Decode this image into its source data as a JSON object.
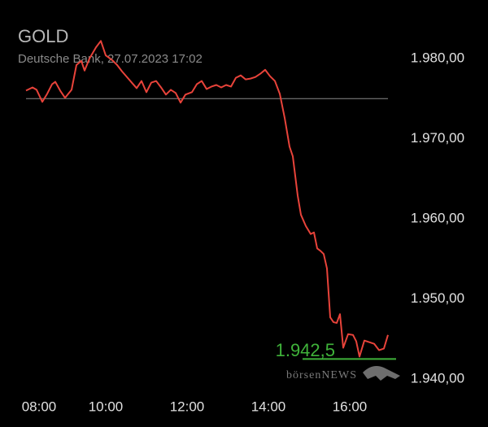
{
  "chart_data": {
    "type": "line",
    "title": "GOLD",
    "subtitle": "Deutsche Bank, 27.07.2023 17:02",
    "watermark": "börsenNEWS",
    "x": [
      8.04,
      8.2,
      8.3,
      8.44,
      8.56,
      8.68,
      8.76,
      8.88,
      9.0,
      9.16,
      9.28,
      9.4,
      9.48,
      9.6,
      9.76,
      9.88,
      10.0,
      10.16,
      10.28,
      10.4,
      10.52,
      10.64,
      10.76,
      10.88,
      11.0,
      11.12,
      11.24,
      11.36,
      11.48,
      11.6,
      11.72,
      11.84,
      11.96,
      12.12,
      12.24,
      12.36,
      12.48,
      12.6,
      12.72,
      12.84,
      12.96,
      13.08,
      13.2,
      13.32,
      13.44,
      13.56,
      13.68,
      13.8,
      13.92,
      14.04,
      14.16,
      14.28,
      14.4,
      14.52,
      14.6,
      14.72,
      14.8,
      14.92,
      15.04,
      15.12,
      15.2,
      15.28,
      15.36,
      15.44,
      15.52,
      15.6,
      15.68,
      15.76,
      15.84,
      15.96,
      16.08,
      16.16,
      16.24,
      16.36,
      16.48,
      16.6,
      16.72,
      16.84,
      16.94
    ],
    "series": [
      {
        "color": "#e8433a",
        "values": [
          1976.0,
          1976.4,
          1976.1,
          1974.6,
          1975.6,
          1976.8,
          1977.1,
          1976.0,
          1975.1,
          1976.1,
          1979.2,
          1979.7,
          1978.5,
          1980.0,
          1981.4,
          1982.2,
          1980.4,
          1979.8,
          1979.2,
          1978.4,
          1977.7,
          1977.0,
          1976.3,
          1977.2,
          1975.8,
          1977.0,
          1977.2,
          1976.4,
          1975.5,
          1976.1,
          1975.7,
          1974.5,
          1975.5,
          1975.8,
          1976.8,
          1977.2,
          1976.2,
          1976.5,
          1976.7,
          1976.4,
          1976.7,
          1976.5,
          1977.6,
          1977.9,
          1977.4,
          1977.5,
          1977.7,
          1978.1,
          1978.6,
          1977.8,
          1977.2,
          1975.6,
          1972.6,
          1969.0,
          1967.8,
          1962.9,
          1960.5,
          1959.1,
          1958.1,
          1958.3,
          1956.3,
          1956.0,
          1955.6,
          1953.8,
          1947.7,
          1947.1,
          1947.0,
          1948.1,
          1943.9,
          1945.6,
          1945.5,
          1944.7,
          1942.8,
          1944.8,
          1944.6,
          1944.4,
          1943.6,
          1943.8,
          1945.5
        ]
      }
    ],
    "reference_line": {
      "value": 1975,
      "color": "#8a8a8a"
    },
    "annotation": {
      "value": 1942.5,
      "label": "1.942,5",
      "color": "#3fb33a"
    },
    "xlim": [
      8,
      18
    ],
    "ylim": [
      1938,
      1986
    ],
    "xticks": [
      {
        "value": 8,
        "label": "08:00"
      },
      {
        "value": 10,
        "label": "10:00"
      },
      {
        "value": 12,
        "label": "12:00"
      },
      {
        "value": 14,
        "label": "14:00"
      },
      {
        "value": 16,
        "label": "16:00"
      }
    ],
    "yticks": [
      {
        "value": 1940,
        "label": "1.940,00"
      },
      {
        "value": 1950,
        "label": "1.950,00"
      },
      {
        "value": 1960,
        "label": "1.960,00"
      },
      {
        "value": 1970,
        "label": "1.970,00"
      },
      {
        "value": 1980,
        "label": "1.980,00"
      }
    ],
    "grid": false
  }
}
